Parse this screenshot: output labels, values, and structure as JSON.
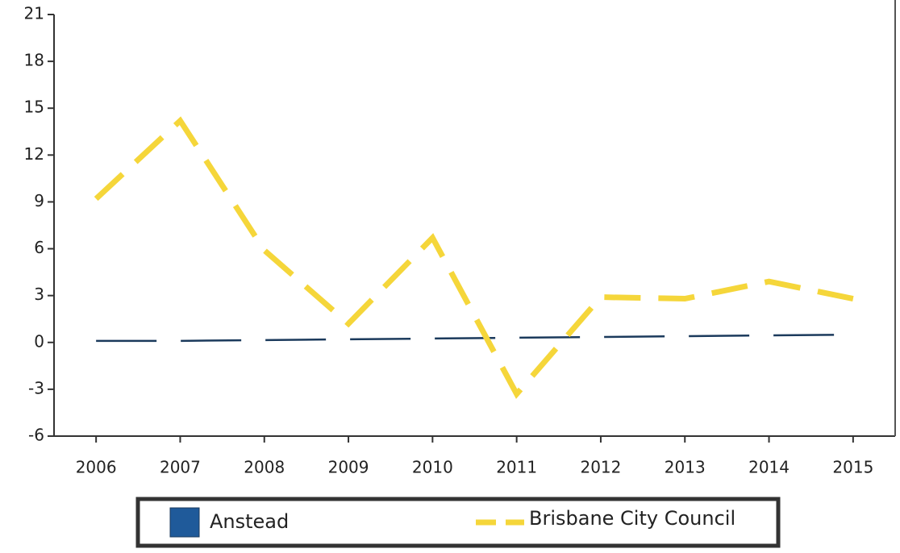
{
  "chart_data": {
    "type": "line",
    "categories": [
      "2006",
      "2007",
      "2008",
      "2009",
      "2010",
      "2011",
      "2012",
      "2013",
      "2014",
      "2015"
    ],
    "series": [
      {
        "name": "Anstead",
        "color": "#1b3a5c",
        "values": [
          0.1,
          0.1,
          0.15,
          0.2,
          0.25,
          0.3,
          0.35,
          0.4,
          0.45,
          0.5
        ]
      },
      {
        "name": "Brisbane City Council",
        "color": "#f5d63a",
        "values": [
          9.2,
          14.2,
          5.9,
          1.2,
          6.7,
          -3.3,
          2.9,
          2.8,
          3.9,
          2.8
        ]
      }
    ],
    "ylim": [
      -6,
      21
    ],
    "yticks": [
      -6,
      -3,
      0,
      3,
      6,
      9,
      12,
      15,
      18,
      21
    ],
    "legend": "bottom"
  }
}
